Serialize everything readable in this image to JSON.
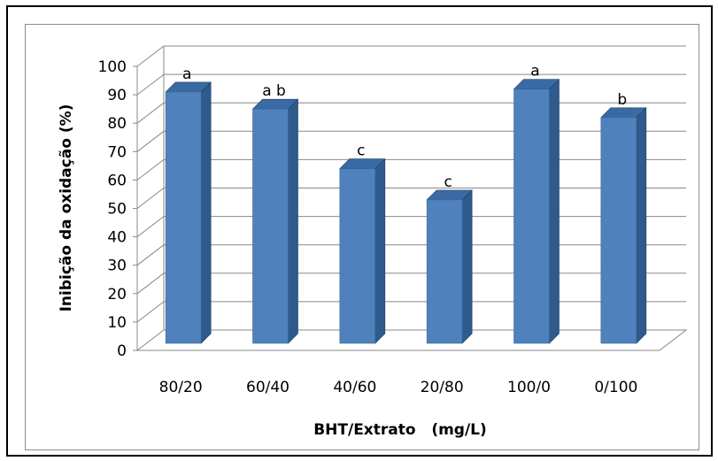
{
  "chart_data": {
    "type": "bar",
    "title": "",
    "xlabel": "BHT/Extrato   (mg/L)",
    "ylabel": "Inibição da oxidação (%)",
    "ylim": [
      0,
      100
    ],
    "ytick_step": 10,
    "grid": true,
    "categories": [
      "80/20",
      "60/40",
      "40/60",
      "20/80",
      "100/0",
      "0/100"
    ],
    "values": [
      91,
      85,
      64,
      53,
      92,
      82
    ],
    "data_labels": [
      "a",
      "a b",
      "c",
      "c",
      "a",
      "b"
    ],
    "colors": {
      "front": "#4f81bd",
      "side": "#2e5a8c",
      "top": "#3a6aa3",
      "grid": "#888888"
    }
  }
}
